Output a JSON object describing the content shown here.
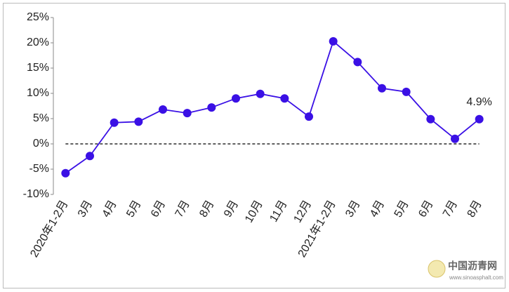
{
  "chart_data": {
    "type": "line",
    "categories": [
      "2020年1-2月",
      "3月",
      "4月",
      "5月",
      "6月",
      "7月",
      "8月",
      "9月",
      "10月",
      "11月",
      "12月",
      "2021年1-2月",
      "3月",
      "4月",
      "5月",
      "6月",
      "7月",
      "8月"
    ],
    "series": [
      {
        "color": "#3a10e5",
        "values": [
          -5.8,
          -2.4,
          4.2,
          4.4,
          6.8,
          6.1,
          7.2,
          9.0,
          9.9,
          9.0,
          5.4,
          20.3,
          16.2,
          11.0,
          10.3,
          4.9,
          1.0,
          4.9
        ],
        "value_labels": [
          null,
          null,
          null,
          null,
          null,
          null,
          null,
          null,
          null,
          null,
          null,
          null,
          null,
          null,
          null,
          null,
          null,
          "4.9%"
        ]
      }
    ],
    "ylim": [
      -10,
      25
    ],
    "yticks": [
      {
        "value": -10,
        "label": "-10%"
      },
      {
        "value": -5,
        "label": "-5%"
      },
      {
        "value": 0,
        "label": "0%"
      },
      {
        "value": 5,
        "label": "5%"
      },
      {
        "value": 10,
        "label": "10%"
      },
      {
        "value": 15,
        "label": "15%"
      },
      {
        "value": 20,
        "label": "20%"
      },
      {
        "value": 25,
        "label": "25%"
      }
    ],
    "zero_line": true,
    "watermark": {
      "name": "中国沥青网",
      "url": "www.sinoasphalt.com"
    }
  }
}
